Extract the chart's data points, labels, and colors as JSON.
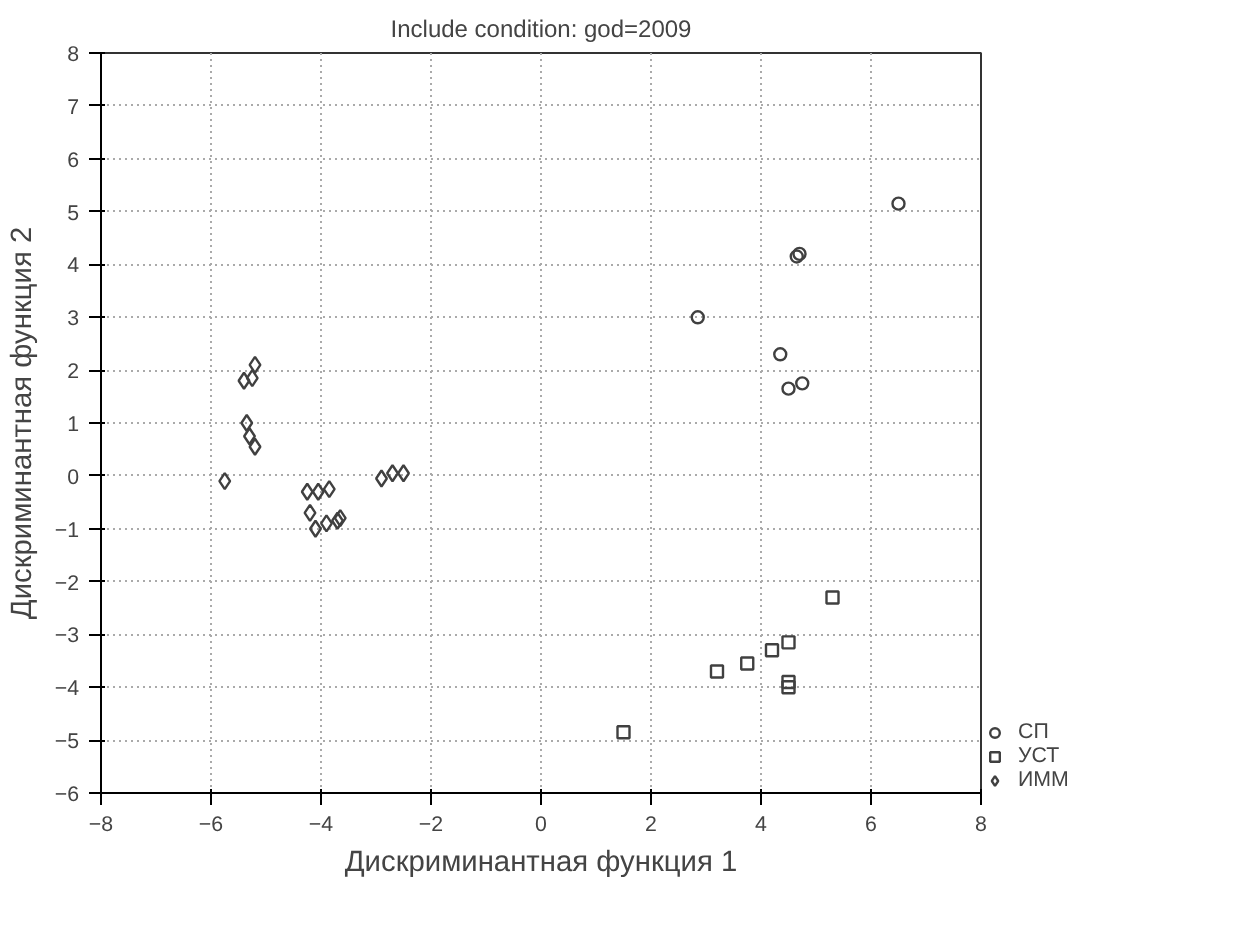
{
  "chart_data": {
    "type": "scatter",
    "title": "Include condition: god=2009",
    "xlabel": "Дискриминантная функция 1",
    "ylabel": "Дискриминантная функция 2",
    "xlim": [
      -8,
      8
    ],
    "ylim": [
      -6,
      8
    ],
    "xticks": [
      -8,
      -6,
      -4,
      -2,
      0,
      2,
      4,
      6,
      8
    ],
    "yticks": [
      -6,
      -5,
      -4,
      -3,
      -2,
      -1,
      0,
      1,
      2,
      3,
      4,
      5,
      6,
      7,
      8
    ],
    "grid": true,
    "legend": "bottom right",
    "series": [
      {
        "name": "СП",
        "color": "#404040",
        "marker": "circle",
        "x": [
          6.5,
          4.7,
          4.65,
          2.85,
          4.35,
          4.5,
          4.75
        ],
        "values": [
          5.15,
          4.2,
          4.15,
          3.0,
          2.3,
          1.65,
          1.75
        ]
      },
      {
        "name": "УСТ",
        "color": "#404040",
        "marker": "square",
        "x": [
          5.3,
          4.5,
          4.2,
          3.75,
          3.2,
          4.5,
          4.5,
          1.5
        ],
        "values": [
          -2.3,
          -3.15,
          -3.3,
          -3.55,
          -3.7,
          -3.9,
          -4.0,
          -4.85
        ]
      },
      {
        "name": "ИММ",
        "color": "#404040",
        "marker": "diamond",
        "x": [
          -5.2,
          -5.4,
          -5.25,
          -5.35,
          -5.3,
          -5.2,
          -5.75,
          -4.25,
          -4.05,
          -3.85,
          -4.2,
          -4.1,
          -3.9,
          -3.7,
          -3.65,
          -2.9,
          -2.7,
          -2.5
        ],
        "values": [
          2.1,
          1.8,
          1.85,
          1.0,
          0.75,
          0.55,
          -0.1,
          -0.3,
          -0.3,
          -0.25,
          -0.7,
          -1.0,
          -0.9,
          -0.85,
          -0.8,
          -0.05,
          0.05,
          0.05
        ]
      }
    ]
  }
}
